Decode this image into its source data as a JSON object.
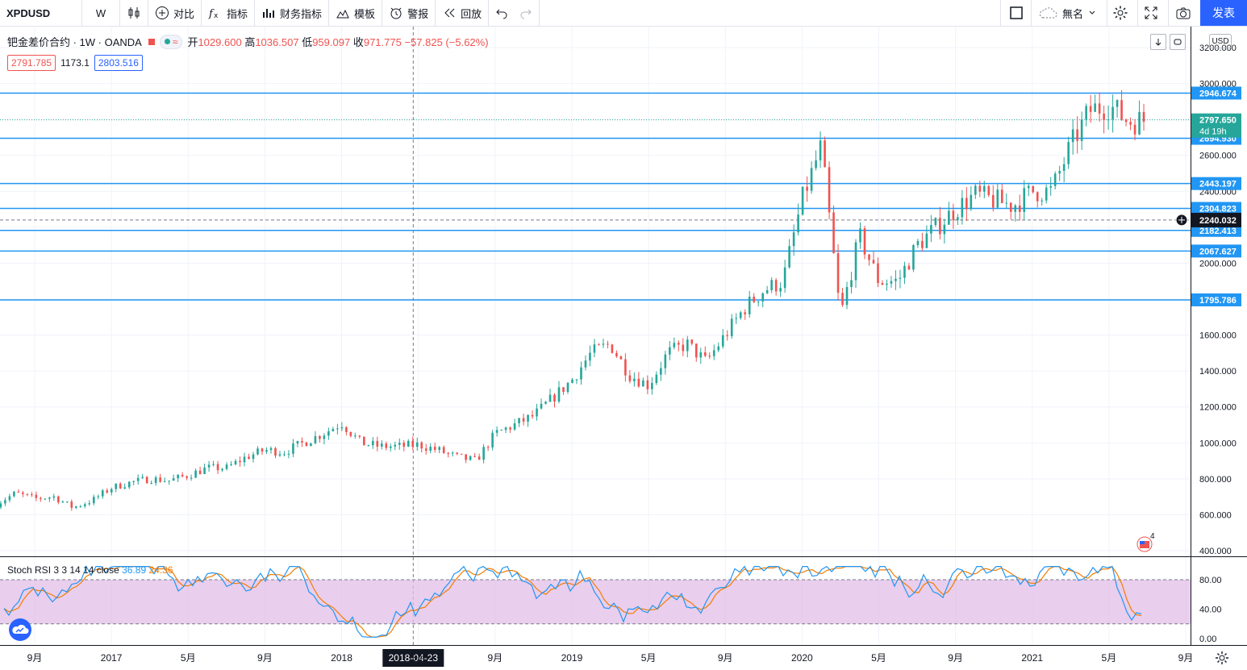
{
  "toolbar": {
    "symbol": "XPDUSD",
    "interval": "W",
    "compare": "对比",
    "indicators": "指标",
    "financials": "财务指标",
    "templates": "模板",
    "alert": "警报",
    "replay": "回放",
    "layout_name": "無名",
    "publish": "发表"
  },
  "legend": {
    "title": "钯金差价合约 · 1W · OANDA",
    "open_label": "开",
    "open": "1029.600",
    "high_label": "高",
    "high": "1036.507",
    "low_label": "低",
    "low": "959.097",
    "close_label": "收",
    "close": "971.775",
    "change": "−57.825 (−5.62%)",
    "bid": "2791.785",
    "spread": "1173.1",
    "ask": "2803.516"
  },
  "currency": "USD",
  "rsi_legend": {
    "name": "Stoch RSI 3 3 14 14 close",
    "k": "36.89",
    "d": "24.36"
  },
  "badge_count": "4",
  "colors": {
    "up": "#26a69a",
    "down": "#ef5350",
    "hline": "#2196f3",
    "k": "#2196f3",
    "d": "#f57c00",
    "band": "#e1bee7"
  },
  "chart_data": {
    "type": "candlestick",
    "y_axis_ticks": [
      "3200.000",
      "3000.000",
      "2800.000",
      "2600.000",
      "2400.000",
      "2200.000",
      "2000.000",
      "1800.000",
      "1600.000",
      "1400.000",
      "1200.000",
      "1000.000",
      "800.000",
      "600.000",
      "400.000"
    ],
    "price_range": [
      400,
      3200
    ],
    "x_axis_ticks": [
      "9月",
      "2017",
      "5月",
      "9月",
      "2018",
      "2018-04-23",
      "5月",
      "9月",
      "2019",
      "5月",
      "9月",
      "2020",
      "5月",
      "9月",
      "2021",
      "5月",
      "9月"
    ],
    "x_tick_dates": [
      "2016-09",
      "2017-01",
      "2017-05",
      "2017-09",
      "2018-01",
      "2018-04-23",
      "2018-05",
      "2018-09",
      "2019-01",
      "2019-05",
      "2019-09",
      "2020-01",
      "2020-05",
      "2020-09",
      "2021-01",
      "2021-05",
      "2021-09"
    ],
    "crosshair_date": "2018-04-23",
    "horizontal_lines": [
      2946.674,
      2694.93,
      2443.197,
      2304.823,
      2182.413,
      2067.627,
      1795.786
    ],
    "horizontal_line_labels": [
      "2946.674",
      "2694.930",
      "2443.197",
      "2304.823",
      "2182.413",
      "2067.627",
      "1795.786"
    ],
    "last_price": "2797.650",
    "countdown": "4d 19h",
    "crosshair_price": "2240.032",
    "crosshair_price_value": 2240.032,
    "close_path": [
      [
        "2016-07",
        660
      ],
      [
        "2016-08",
        720
      ],
      [
        "2016-09",
        690
      ],
      [
        "2016-10",
        700
      ],
      [
        "2016-11",
        640
      ],
      [
        "2016-12",
        680
      ],
      [
        "2017-01",
        750
      ],
      [
        "2017-02",
        780
      ],
      [
        "2017-03",
        800
      ],
      [
        "2017-04",
        790
      ],
      [
        "2017-05",
        820
      ],
      [
        "2017-06",
        860
      ],
      [
        "2017-07",
        860
      ],
      [
        "2017-08",
        920
      ],
      [
        "2017-09",
        960
      ],
      [
        "2017-10",
        950
      ],
      [
        "2017-11",
        1000
      ],
      [
        "2017-12",
        1050
      ],
      [
        "2018-01",
        1110
      ],
      [
        "2018-02",
        1000
      ],
      [
        "2018-03",
        980
      ],
      [
        "2018-04",
        980
      ],
      [
        "2018-05",
        990
      ],
      [
        "2018-06",
        960
      ],
      [
        "2018-07",
        920
      ],
      [
        "2018-08",
        900
      ],
      [
        "2018-09",
        1050
      ],
      [
        "2018-10",
        1100
      ],
      [
        "2018-11",
        1150
      ],
      [
        "2018-12",
        1250
      ],
      [
        "2019-01",
        1350
      ],
      [
        "2019-02",
        1500
      ],
      [
        "2019-03",
        1550
      ],
      [
        "2019-04",
        1380
      ],
      [
        "2019-05",
        1320
      ],
      [
        "2019-06",
        1500
      ],
      [
        "2019-07",
        1550
      ],
      [
        "2019-08",
        1450
      ],
      [
        "2019-09",
        1600
      ],
      [
        "2019-10",
        1750
      ],
      [
        "2019-11",
        1850
      ],
      [
        "2019-12",
        1900
      ],
      [
        "2020-01",
        2350
      ],
      [
        "2020-02",
        2650
      ],
      [
        "2020-03",
        1700
      ],
      [
        "2020-04",
        2150
      ],
      [
        "2020-05",
        1900
      ],
      [
        "2020-06",
        1900
      ],
      [
        "2020-07",
        2100
      ],
      [
        "2020-08",
        2200
      ],
      [
        "2020-09",
        2300
      ],
      [
        "2020-10",
        2380
      ],
      [
        "2020-11",
        2350
      ],
      [
        "2020-12",
        2320
      ],
      [
        "2021-01",
        2400
      ],
      [
        "2021-02",
        2400
      ],
      [
        "2021-03",
        2650
      ],
      [
        "2021-04",
        2850
      ],
      [
        "2021-05",
        2880
      ],
      [
        "2021-06",
        2790
      ],
      [
        "2021-07",
        2797.65
      ]
    ],
    "stoch_rsi_axis": [
      "80.00",
      "40.00",
      "0.00"
    ],
    "stoch_rsi_levels": [
      80,
      20
    ],
    "series": [
      {
        "name": "K",
        "value": 36.89
      },
      {
        "name": "D",
        "value": 24.36
      }
    ]
  }
}
